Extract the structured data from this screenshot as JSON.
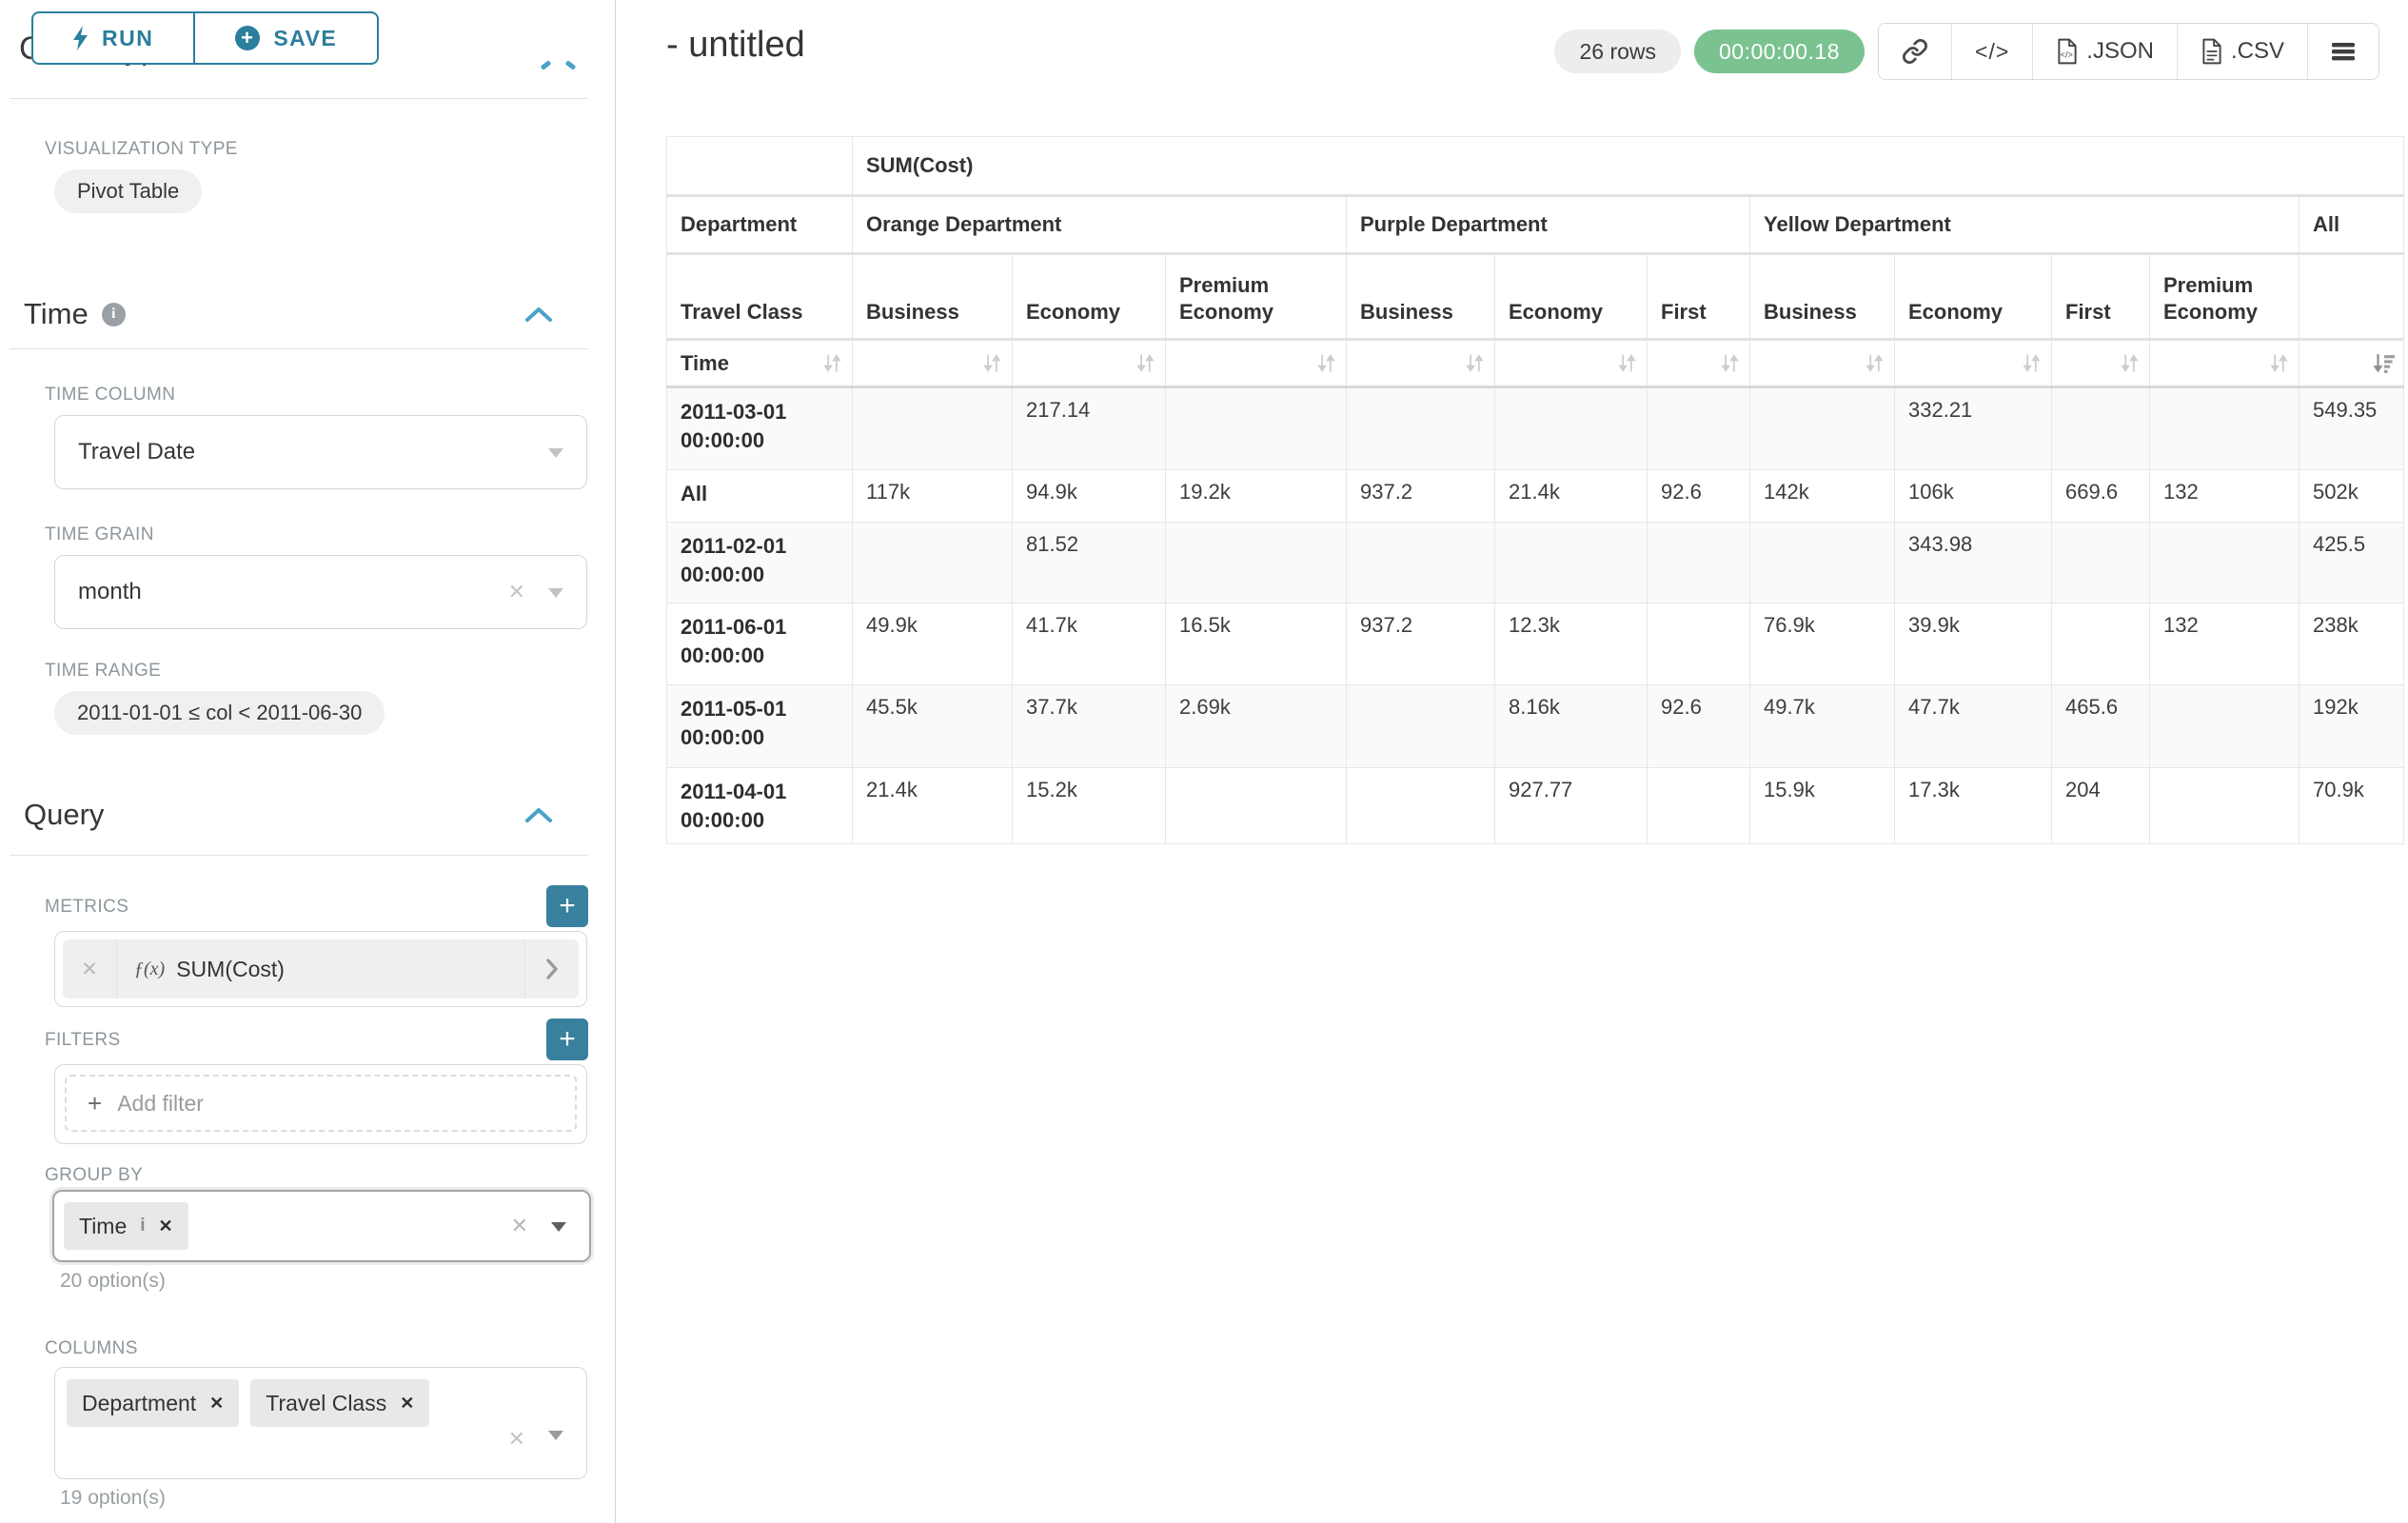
{
  "sidebar": {
    "run_button": "RUN",
    "save_button": "SAVE",
    "chart_type_heading": "Chart Type",
    "visualization": {
      "label": "VISUALIZATION TYPE",
      "value": "Pivot Table"
    },
    "time_section": {
      "heading": "Time",
      "time_column": {
        "label": "TIME COLUMN",
        "value": "Travel Date"
      },
      "time_grain": {
        "label": "TIME GRAIN",
        "value": "month"
      },
      "time_range": {
        "label": "TIME RANGE",
        "value": "2011-01-01 ≤ col < 2011-06-30"
      }
    },
    "query_section": {
      "heading": "Query",
      "metrics": {
        "label": "METRICS",
        "fx": "ƒ(x)",
        "value": "SUM(Cost)"
      },
      "filters": {
        "label": "FILTERS",
        "placeholder": "Add filter"
      },
      "group_by": {
        "label": "GROUP BY",
        "values": [
          "Time"
        ],
        "hint": "20 option(s)"
      },
      "columns": {
        "label": "COLUMNS",
        "values": [
          "Department",
          "Travel Class"
        ],
        "hint": "19 option(s)"
      }
    }
  },
  "header": {
    "title": "- untitled",
    "row_count": "26 rows",
    "timer": "00:00:00.18",
    "export_json": ".JSON",
    "export_csv": ".CSV"
  },
  "colors": {
    "accent_teal": "#2b7e9c",
    "chevron_blue": "#4ba3c7",
    "timer_green": "#7bc291",
    "pill_gray": "#f0f0f0",
    "add_button_teal": "#38809d"
  },
  "pivot_table": {
    "type": "table",
    "metric_header": "SUM(Cost)",
    "row_dim_labels": {
      "department": "Department",
      "travel_class": "Travel Class",
      "time": "Time"
    },
    "column_groups": [
      {
        "label": "Orange Department",
        "span": 3
      },
      {
        "label": "Purple Department",
        "span": 3
      },
      {
        "label": "Yellow Department",
        "span": 4
      },
      {
        "label": "All",
        "span": 1
      }
    ],
    "class_columns": [
      "Business",
      "Economy",
      "Premium Economy",
      "Business",
      "Economy",
      "First",
      "Business",
      "Economy",
      "First",
      "Premium Economy",
      ""
    ],
    "sorted_column": "All",
    "sort_direction": "desc",
    "rows": [
      {
        "label": "2011-03-01 00:00:00",
        "cells": [
          "",
          "217.14",
          "",
          "",
          "",
          "",
          "",
          "332.21",
          "",
          "",
          "549.35"
        ]
      },
      {
        "label": "All",
        "cells": [
          "117k",
          "94.9k",
          "19.2k",
          "937.2",
          "21.4k",
          "92.6",
          "142k",
          "106k",
          "669.6",
          "132",
          "502k"
        ]
      },
      {
        "label": "2011-02-01 00:00:00",
        "cells": [
          "",
          "81.52",
          "",
          "",
          "",
          "",
          "",
          "343.98",
          "",
          "",
          "425.5"
        ]
      },
      {
        "label": "2011-06-01 00:00:00",
        "cells": [
          "49.9k",
          "41.7k",
          "16.5k",
          "937.2",
          "12.3k",
          "",
          "76.9k",
          "39.9k",
          "",
          "132",
          "238k"
        ]
      },
      {
        "label": "2011-05-01 00:00:00",
        "cells": [
          "45.5k",
          "37.7k",
          "2.69k",
          "",
          "8.16k",
          "92.6",
          "49.7k",
          "47.7k",
          "465.6",
          "",
          "192k"
        ]
      },
      {
        "label": "2011-04-01 00:00:00",
        "cells": [
          "21.4k",
          "15.2k",
          "",
          "",
          "927.77",
          "",
          "15.9k",
          "17.3k",
          "204",
          "",
          "70.9k"
        ]
      }
    ]
  }
}
